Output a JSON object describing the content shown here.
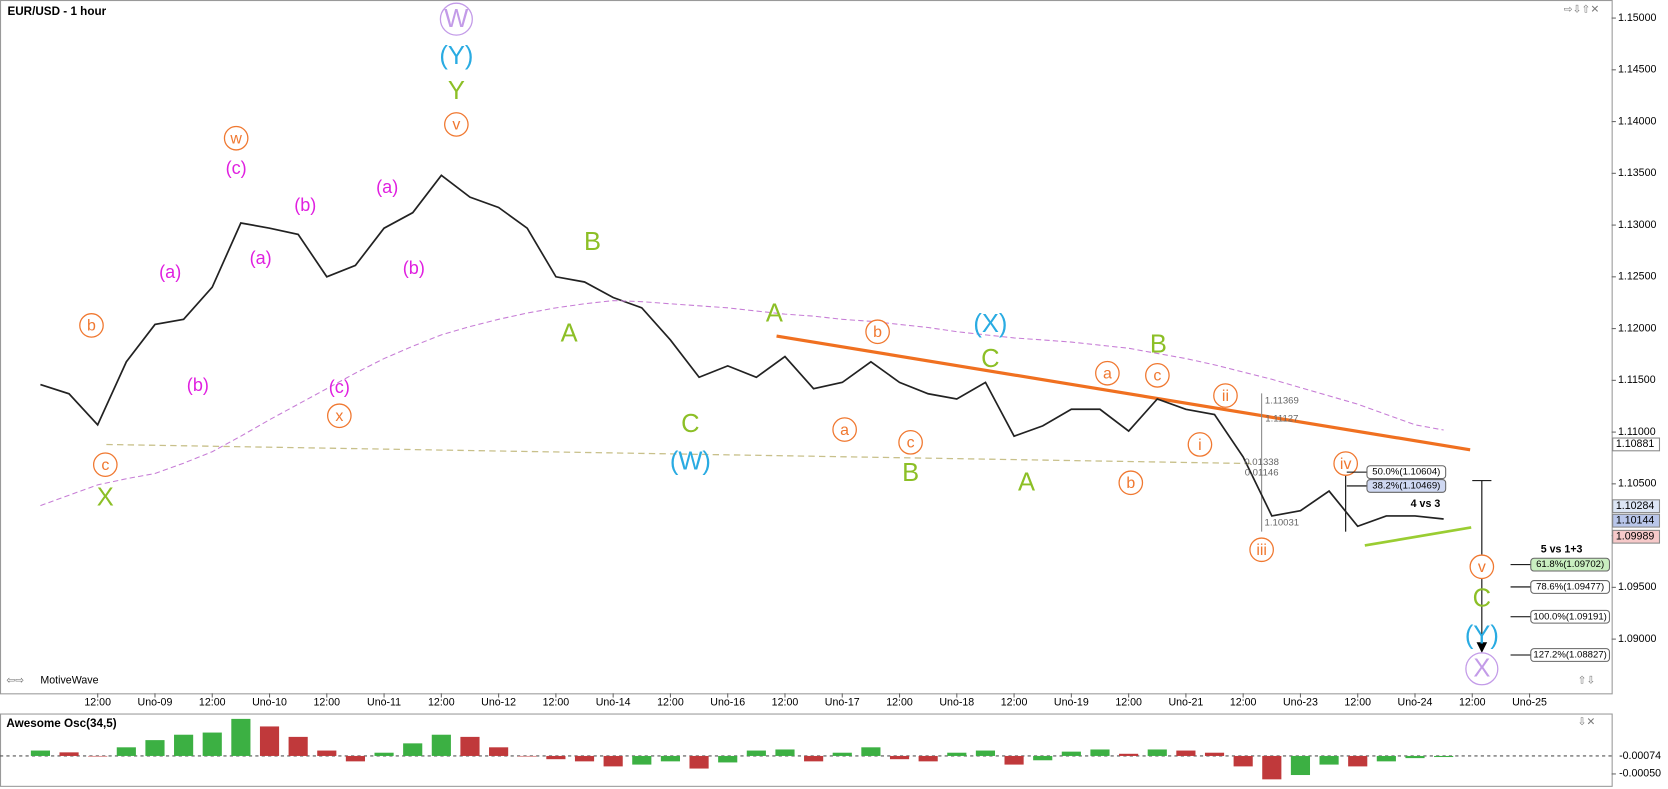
{
  "chart_data": [
    {
      "type": "line",
      "title": "EUR/USD - 1 hour",
      "brand": "MotiveWave",
      "categories": [
        null,
        null,
        "12:00",
        null,
        "Uno-09",
        null,
        "12:00",
        null,
        "Uno-10",
        null,
        "12:00",
        null,
        "Uno-11",
        null,
        "12:00",
        null,
        "Uno-12",
        null,
        "12:00",
        null,
        "Uno-14",
        null,
        "12:00",
        null,
        "Uno-16",
        null,
        "12:00",
        null,
        "Uno-17",
        null,
        "12:00",
        null,
        "Uno-18",
        null,
        "12:00",
        null,
        "Uno-19",
        null,
        "12:00",
        null,
        "Uno-21",
        null,
        "12:00",
        null,
        "Uno-23",
        null,
        "12:00",
        null,
        "Uno-24",
        null,
        "12:00",
        null,
        "Uno-25"
      ],
      "series": [
        {
          "name": "EUR/USD",
          "color": "#222222",
          "values": [
            1.1146,
            1.1137,
            1.1107,
            1.1168,
            1.1204,
            1.1209,
            1.124,
            1.1302,
            1.1297,
            1.1291,
            1.125,
            1.1261,
            1.1297,
            1.1312,
            1.1348,
            1.1327,
            1.1317,
            1.1297,
            1.125,
            1.1245,
            1.123,
            1.122,
            1.1189,
            1.1153,
            1.1164,
            1.1153,
            1.1173,
            1.1142,
            1.1148,
            1.1168,
            1.1148,
            1.1137,
            1.1132,
            1.1148,
            1.1096,
            1.1106,
            1.1122,
            1.1122,
            1.1101,
            1.1132,
            1.1122,
            1.1117,
            1.1076,
            1.1019,
            1.1024,
            1.1043,
            1.1009,
            1.1019,
            1.1019,
            1.1016,
            null,
            null,
            null
          ]
        },
        {
          "name": "MA",
          "color": "#c77dd6",
          "values": [
            1.1029,
            1.1039,
            1.1049,
            1.1055,
            1.106,
            1.107,
            1.1081,
            1.1096,
            1.1112,
            1.1127,
            1.1142,
            1.1157,
            1.1171,
            1.1183,
            1.1194,
            1.1202,
            1.1209,
            1.1215,
            1.122,
            1.1224,
            1.1227,
            1.1226,
            1.1224,
            1.1222,
            1.122,
            1.1217,
            1.1214,
            1.1212,
            1.1209,
            1.1207,
            1.1204,
            1.1201,
            1.1197,
            1.1194,
            1.1191,
            1.1189,
            1.1187,
            1.1184,
            1.1181,
            1.1176,
            1.1171,
            1.1165,
            1.1158,
            1.1151,
            1.1143,
            1.1135,
            1.1127,
            1.1117,
            1.1107,
            1.1102,
            null,
            null,
            null
          ]
        }
      ],
      "ylim": [
        1.08497,
        1.15154
      ],
      "yticks": [
        {
          "value": 1.15,
          "label": "1.15000"
        },
        {
          "value": 1.145,
          "label": "1.14500"
        },
        {
          "value": 1.14,
          "label": "1.14000"
        },
        {
          "value": 1.135,
          "label": "1.13500"
        },
        {
          "value": 1.13,
          "label": "1.13000"
        },
        {
          "value": 1.125,
          "label": "1.12500"
        },
        {
          "value": 1.12,
          "label": "1.12000"
        },
        {
          "value": 1.115,
          "label": "1.11500"
        },
        {
          "value": 1.11,
          "label": "1.11000"
        },
        {
          "value": 1.105,
          "label": "1.10500"
        },
        {
          "value": 1.1,
          "label": "1.10000"
        },
        {
          "value": 1.095,
          "label": "1.09500"
        },
        {
          "value": 1.09,
          "label": "1.09000"
        }
      ],
      "price_tags": [
        {
          "value": 1.10881,
          "color": "#ffffff"
        },
        {
          "value": 1.10284,
          "color": "#dde6f5"
        },
        {
          "value": 1.10144,
          "color": "#b9c6ea"
        },
        {
          "value": 1.09989,
          "color": "#f6c9c9"
        }
      ],
      "annotations": [
        {
          "text": "b",
          "color": "#f07830",
          "circled": true
        },
        {
          "text": "c",
          "color": "#f07830",
          "circled": true
        },
        {
          "text": "w",
          "color": "#f07830",
          "circled": true
        },
        {
          "text": "v",
          "color": "#f07830",
          "circled": true
        },
        {
          "text": "x",
          "color": "#f07830",
          "circled": true
        },
        {
          "text": "b",
          "color": "#f07830",
          "circled": true
        },
        {
          "text": "a",
          "color": "#f07830",
          "circled": true
        },
        {
          "text": "c",
          "color": "#f07830",
          "circled": true
        },
        {
          "text": "a",
          "color": "#f07830",
          "circled": true
        },
        {
          "text": "c",
          "color": "#f07830",
          "circled": true
        },
        {
          "text": "b",
          "color": "#f07830",
          "circled": true
        },
        {
          "text": "ii",
          "color": "#f07830",
          "circled": true
        },
        {
          "text": "i",
          "color": "#f07830",
          "circled": true
        },
        {
          "text": "iii",
          "color": "#f07830",
          "circled": true
        },
        {
          "text": "iv",
          "color": "#f07830",
          "circled": true
        },
        {
          "text": "v",
          "color": "#f07830",
          "circled": true
        },
        {
          "text": "(a)",
          "color": "#e020e0",
          "circled": false
        },
        {
          "text": "(c)",
          "color": "#e020e0",
          "circled": false
        },
        {
          "text": "(b)",
          "color": "#e020e0",
          "circled": false
        },
        {
          "text": "(a)",
          "color": "#e020e0",
          "circled": false
        },
        {
          "text": "(b)",
          "color": "#e020e0",
          "circled": false
        },
        {
          "text": "(a)",
          "color": "#e020e0",
          "circled": false
        },
        {
          "text": "(b)",
          "color": "#e020e0",
          "circled": false
        },
        {
          "text": "(c)",
          "color": "#e020e0",
          "circled": false
        },
        {
          "text": "X",
          "color": "#8cbf26",
          "circled": false
        },
        {
          "text": "Y",
          "color": "#8cbf26",
          "circled": false
        },
        {
          "text": "B",
          "color": "#8cbf26",
          "circled": false
        },
        {
          "text": "A",
          "color": "#8cbf26",
          "circled": false
        },
        {
          "text": "A",
          "color": "#8cbf26",
          "circled": false
        },
        {
          "text": "C",
          "color": "#8cbf26",
          "circled": false
        },
        {
          "text": "B",
          "color": "#8cbf26",
          "circled": false
        },
        {
          "text": "C",
          "color": "#8cbf26",
          "circled": false
        },
        {
          "text": "B",
          "color": "#8cbf26",
          "circled": false
        },
        {
          "text": "A",
          "color": "#8cbf26",
          "circled": false
        },
        {
          "text": "C",
          "color": "#8cbf26",
          "circled": false
        },
        {
          "text": "(Y)",
          "color": "#29abe2",
          "circled": false
        },
        {
          "text": "(X)",
          "color": "#29abe2",
          "circled": false
        },
        {
          "text": "(W)",
          "color": "#29abe2",
          "circled": false
        },
        {
          "text": "(Y)",
          "color": "#29abe2",
          "circled": false
        },
        {
          "text": "W",
          "color": "#c39be8",
          "circled": true
        },
        {
          "text": "X",
          "color": "#c39be8",
          "circled": true
        },
        {
          "text": "4 vs 3",
          "color": "#000000",
          "circled": false
        },
        {
          "text": "5 vs 1+3",
          "color": "#000000",
          "circled": false
        }
      ],
      "fib_labels": [
        {
          "text": "50.0%(1.10604)",
          "color": "#ffffff"
        },
        {
          "text": "38.2%(1.10469)",
          "color": "#cfd8f2"
        },
        {
          "text": "61.8%(1.09702)",
          "color": "#c9eec0"
        },
        {
          "text": "78.6%(1.09477)",
          "color": "#ffffff"
        },
        {
          "text": "100.0%(1.09191)",
          "color": "#ffffff"
        },
        {
          "text": "127.2%(1.08827)",
          "color": "#ffffff"
        }
      ],
      "measure_labels": [
        "1.11369",
        "1.11127",
        "0.01338",
        "0.01146",
        "1.10031"
      ]
    },
    {
      "type": "bar",
      "title": "Awesome Osc(34,5)",
      "values": [
        0.00015,
        0.0001,
        0,
        0.00024,
        0.00044,
        0.00059,
        0.00065,
        0.00103,
        0.00082,
        0.00053,
        0.00015,
        -0.00015,
        9e-05,
        0.00035,
        0.00059,
        0.00053,
        0.00024,
        0,
        -9e-05,
        -0.00015,
        -0.00029,
        -0.00024,
        -0.00015,
        -0.00035,
        -0.00018,
        0.00015,
        0.00018,
        -0.00015,
        9e-05,
        0.00024,
        -9e-05,
        -0.00015,
        9e-05,
        0.00015,
        -0.00024,
        -0.00012,
        0.00012,
        0.00018,
        6e-05,
        0.00018,
        0.00015,
        9e-05,
        -0.00029,
        -0.00065,
        -0.00053,
        -0.00024,
        -0.00029,
        -0.00015,
        -6e-05,
        -3e-05
      ],
      "colors": {
        "up": "#3cb043",
        "down": "#c0393b"
      },
      "ylim": [
        -0.0008,
        0.00115
      ],
      "yticks": [
        {
          "value": -0.0005,
          "label": "-0.00050"
        }
      ],
      "current_label": "-0.00074"
    }
  ]
}
